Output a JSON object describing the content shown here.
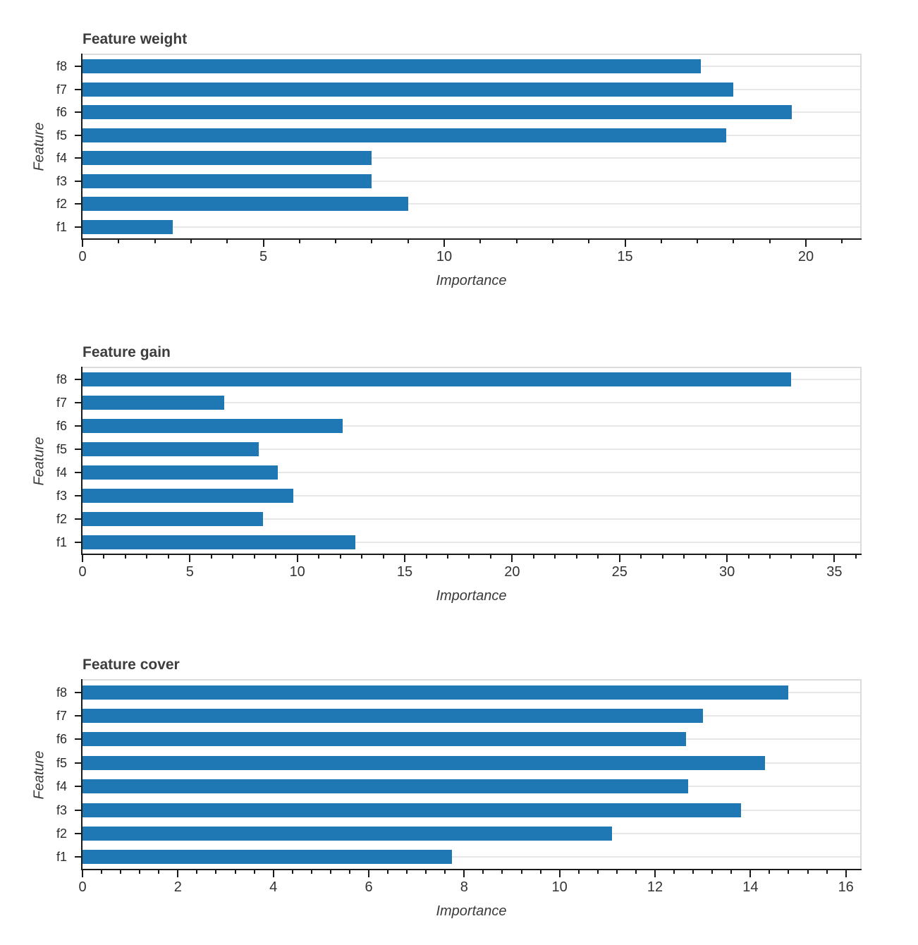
{
  "colors": {
    "bar": "#1f77b4",
    "grid": "#e7e7e7",
    "axis_dark": "#1a1a1a",
    "spine_light": "#dcdcdc",
    "title_text": "#3d3d3d",
    "tick_text": "#333333"
  },
  "chart_data": [
    {
      "type": "bar",
      "orientation": "horizontal",
      "title": "Feature weight",
      "xlabel": "Importance",
      "ylabel": "Feature",
      "categories": [
        "f8",
        "f7",
        "f6",
        "f5",
        "f4",
        "f3",
        "f2",
        "f1"
      ],
      "values": [
        17.1,
        18.0,
        19.6,
        17.8,
        8.0,
        8.0,
        9.0,
        2.5
      ],
      "xlim": [
        0,
        21.5
      ],
      "xticks": [
        0,
        5,
        10,
        15,
        20
      ],
      "minor_tick_step": 1,
      "grid": true,
      "legend": "none"
    },
    {
      "type": "bar",
      "orientation": "horizontal",
      "title": "Feature gain",
      "xlabel": "Importance",
      "ylabel": "Feature",
      "categories": [
        "f8",
        "f7",
        "f6",
        "f5",
        "f4",
        "f3",
        "f2",
        "f1"
      ],
      "values": [
        33.0,
        6.6,
        12.1,
        8.2,
        9.1,
        9.8,
        8.4,
        12.7
      ],
      "xlim": [
        0,
        36.2
      ],
      "xticks": [
        0,
        5,
        10,
        15,
        20,
        25,
        30,
        35
      ],
      "minor_tick_step": 1,
      "grid": true,
      "legend": "none"
    },
    {
      "type": "bar",
      "orientation": "horizontal",
      "title": "Feature cover",
      "xlabel": "Importance",
      "ylabel": "Feature",
      "categories": [
        "f8",
        "f7",
        "f6",
        "f5",
        "f4",
        "f3",
        "f2",
        "f1"
      ],
      "values": [
        14.8,
        13.0,
        12.65,
        14.3,
        12.7,
        13.8,
        11.1,
        7.75
      ],
      "xlim": [
        0,
        16.3
      ],
      "xticks": [
        0,
        2,
        4,
        6,
        8,
        10,
        12,
        14,
        16
      ],
      "minor_tick_step": 0.4,
      "grid": true,
      "legend": "none"
    }
  ]
}
